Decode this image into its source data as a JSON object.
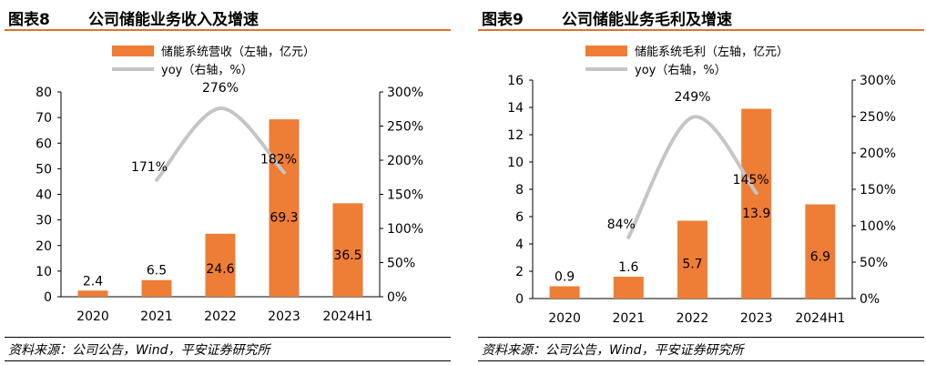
{
  "colors": {
    "bar": "#ee7d36",
    "line": "#c5c5c5",
    "accent": "#e0722d"
  },
  "chart_data": [
    {
      "type": "bar",
      "figure_no": "图表8",
      "title": "公司储能业务收入及增速",
      "categories": [
        "2020",
        "2021",
        "2022",
        "2023",
        "2024H1"
      ],
      "series": [
        {
          "name": "储能系统营收（左轴，亿元）",
          "type": "bar",
          "axis": "left",
          "values": [
            2.4,
            6.5,
            24.6,
            69.3,
            36.5
          ],
          "labels": [
            "2.4",
            "6.5",
            "24.6",
            "69.3",
            "36.5"
          ]
        },
        {
          "name": "yoy（右轴，%）",
          "type": "line",
          "axis": "right",
          "x": [
            "2021",
            "2022",
            "2023"
          ],
          "values": [
            171,
            276,
            182
          ],
          "labels": [
            "171%",
            "276%",
            "182%"
          ]
        }
      ],
      "y_left": {
        "min": 0,
        "max": 80,
        "ticks": [
          0,
          10,
          20,
          30,
          40,
          50,
          60,
          70,
          80
        ]
      },
      "y_right": {
        "min": 0,
        "max": 300,
        "ticks": [
          "0%",
          "50%",
          "100%",
          "150%",
          "200%",
          "250%",
          "300%"
        ]
      },
      "legend": "top-center",
      "grid": false,
      "source": "资料来源：公司公告，Wind，平安证券研究所"
    },
    {
      "type": "bar",
      "figure_no": "图表9",
      "title": "公司储能业务毛利及增速",
      "categories": [
        "2020",
        "2021",
        "2022",
        "2023",
        "2024H1"
      ],
      "series": [
        {
          "name": "储能系统毛利（左轴，亿元）",
          "type": "bar",
          "axis": "left",
          "values": [
            0.9,
            1.6,
            5.7,
            13.9,
            6.9
          ],
          "labels": [
            "0.9",
            "1.6",
            "5.7",
            "13.9",
            "6.9"
          ]
        },
        {
          "name": "yoy（右轴，%）",
          "type": "line",
          "axis": "right",
          "x": [
            "2021",
            "2022",
            "2023"
          ],
          "values": [
            84,
            249,
            145
          ],
          "labels": [
            "84%",
            "249%",
            "145%"
          ]
        }
      ],
      "y_left": {
        "min": 0,
        "max": 16,
        "ticks": [
          0,
          2,
          4,
          6,
          8,
          10,
          12,
          14,
          16
        ]
      },
      "y_right": {
        "min": 0,
        "max": 300,
        "ticks": [
          "0%",
          "50%",
          "100%",
          "150%",
          "200%",
          "250%",
          "300%"
        ]
      },
      "legend": "top-center",
      "grid": false,
      "source": "资料来源：公司公告，Wind，平安证券研究所"
    }
  ]
}
